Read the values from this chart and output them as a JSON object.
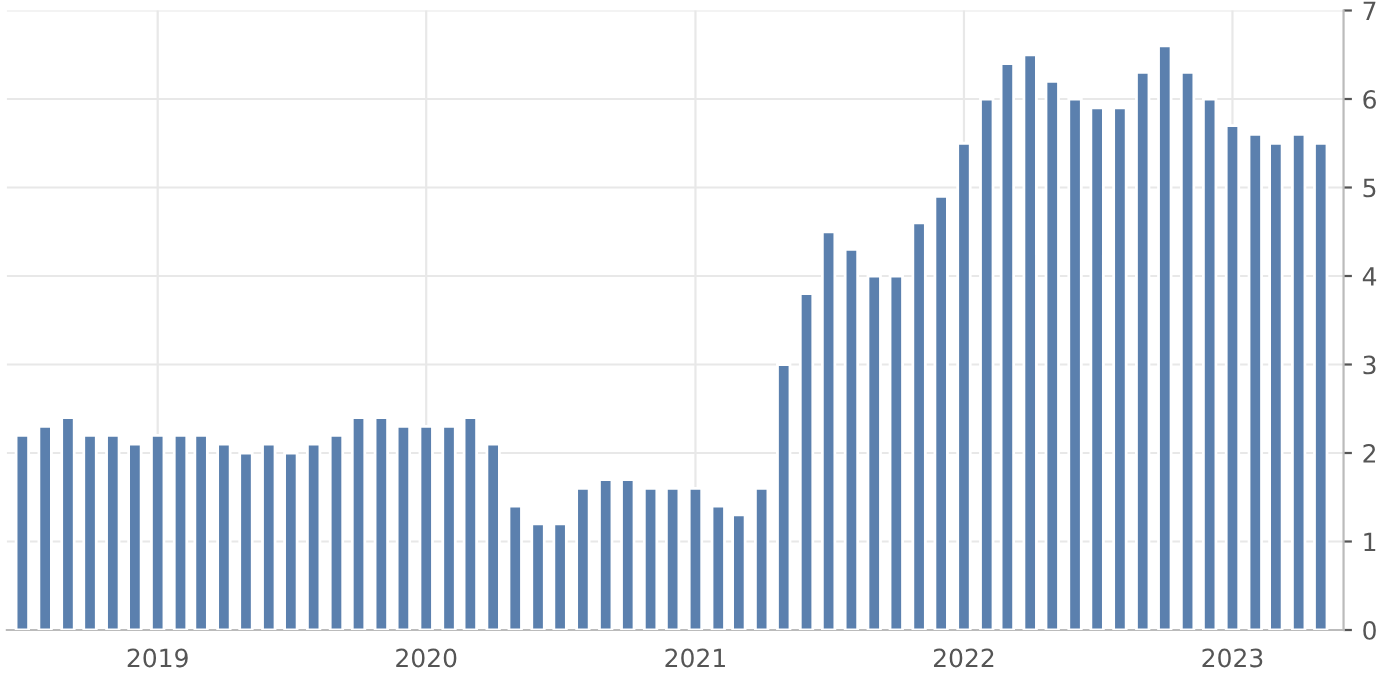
{
  "chart_data": {
    "type": "bar",
    "color": "#5b80ae",
    "x": [
      "2018-07",
      "2018-08",
      "2018-09",
      "2018-10",
      "2018-11",
      "2018-12",
      "2019-01",
      "2019-02",
      "2019-03",
      "2019-04",
      "2019-05",
      "2019-06",
      "2019-07",
      "2019-08",
      "2019-09",
      "2019-10",
      "2019-11",
      "2019-12",
      "2020-01",
      "2020-02",
      "2020-03",
      "2020-04",
      "2020-05",
      "2020-06",
      "2020-07",
      "2020-08",
      "2020-09",
      "2020-10",
      "2020-11",
      "2020-12",
      "2021-01",
      "2021-02",
      "2021-03",
      "2021-04",
      "2021-05",
      "2021-06",
      "2021-07",
      "2021-08",
      "2021-09",
      "2021-10",
      "2021-11",
      "2021-12",
      "2022-01",
      "2022-02",
      "2022-03",
      "2022-04",
      "2022-05",
      "2022-06",
      "2022-07",
      "2022-08",
      "2022-09",
      "2022-10",
      "2022-11",
      "2022-12",
      "2023-01",
      "2023-02",
      "2023-03",
      "2023-04",
      "2023-05"
    ],
    "values": [
      2.2,
      2.3,
      2.4,
      2.2,
      2.2,
      2.1,
      2.2,
      2.2,
      2.2,
      2.1,
      2.0,
      2.1,
      2.0,
      2.1,
      2.2,
      2.4,
      2.4,
      2.3,
      2.3,
      2.3,
      2.4,
      2.1,
      1.4,
      1.2,
      1.2,
      1.6,
      1.7,
      1.7,
      1.6,
      1.6,
      1.6,
      1.4,
      1.3,
      1.6,
      3.0,
      3.8,
      4.5,
      4.3,
      4.0,
      4.0,
      4.6,
      4.9,
      5.5,
      6.0,
      6.4,
      6.5,
      6.2,
      6.0,
      5.9,
      5.9,
      6.3,
      6.6,
      6.3,
      6.0,
      5.7,
      5.6,
      5.5,
      5.6,
      5.5
    ],
    "xlim": [
      "2018-06-10",
      "2023-06-01"
    ],
    "xticks": [
      {
        "value": "2019",
        "label": "2019"
      },
      {
        "value": "2020",
        "label": "2020"
      },
      {
        "value": "2021",
        "label": "2021"
      },
      {
        "value": "2022",
        "label": "2022"
      },
      {
        "value": "2023",
        "label": "2023"
      }
    ],
    "ylim": [
      0,
      7
    ],
    "yticks": [
      0,
      1,
      2,
      3,
      4,
      5,
      6,
      7
    ],
    "grid": true
  }
}
